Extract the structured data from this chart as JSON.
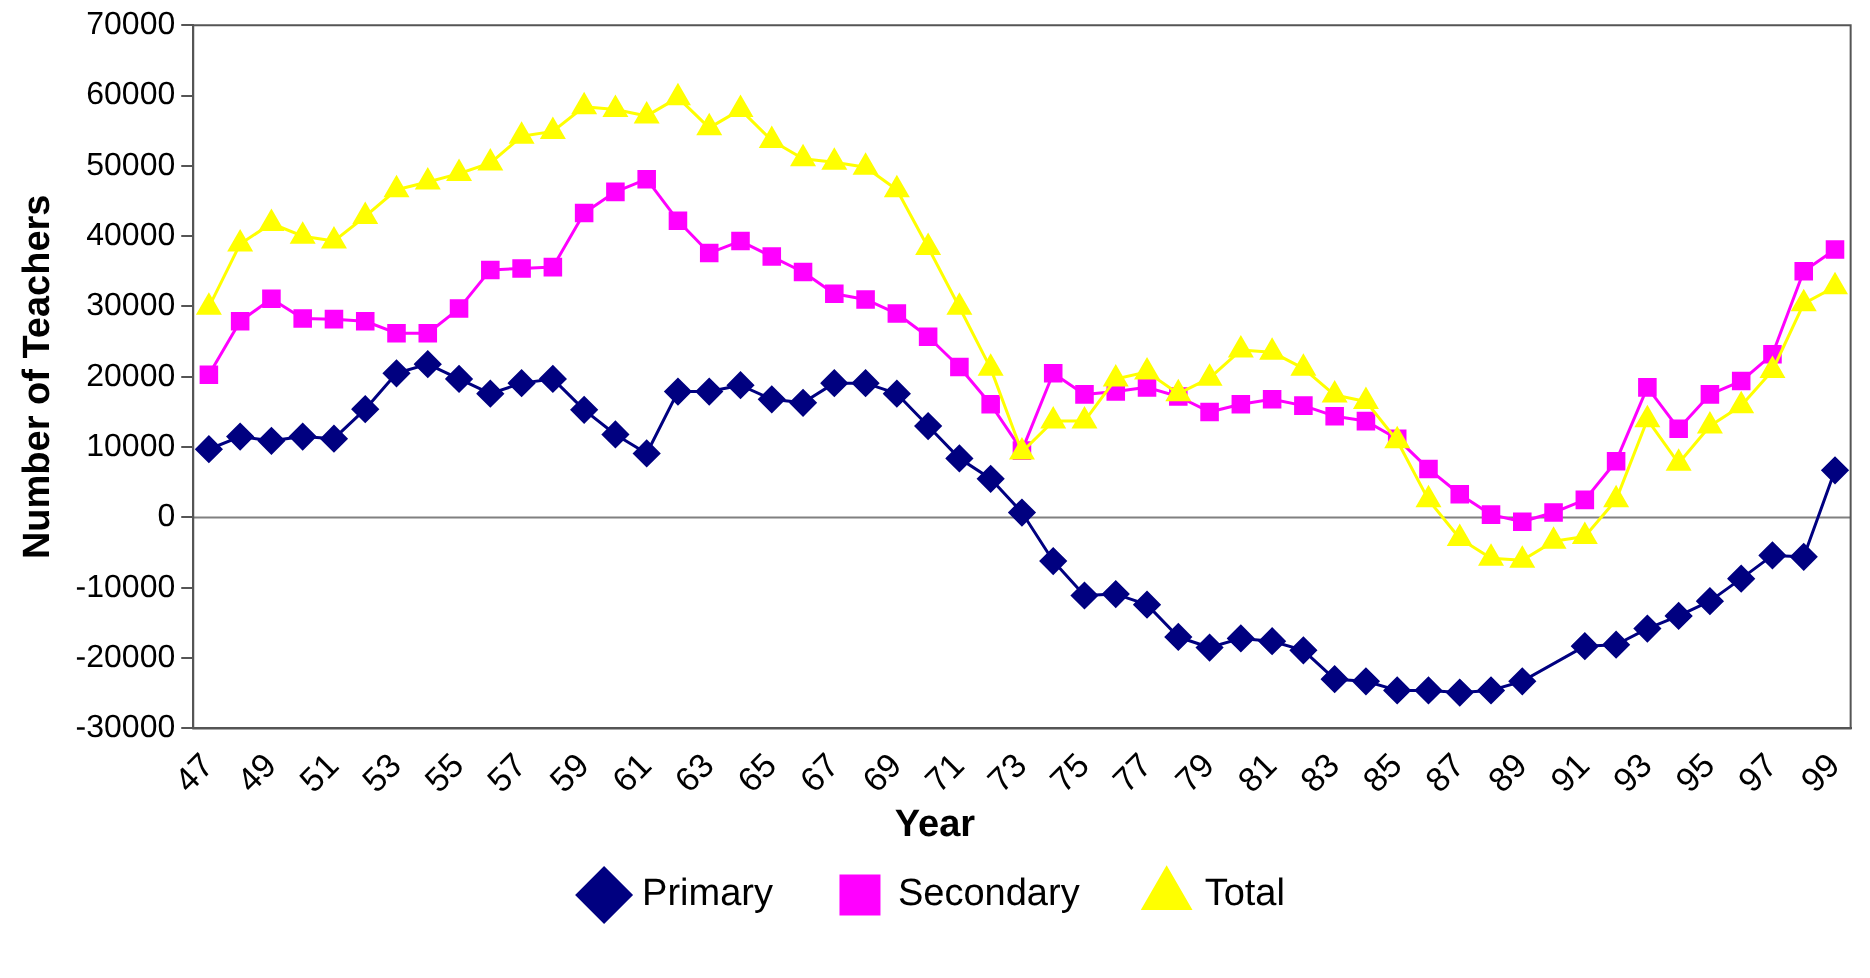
{
  "chart_data": {
    "type": "line",
    "xlabel": "Year",
    "ylabel": "Number of Teachers",
    "categories": [
      "47",
      null,
      "49",
      null,
      "51",
      null,
      "53",
      null,
      "55",
      null,
      "57",
      null,
      "59",
      null,
      "61",
      null,
      "63",
      null,
      "65",
      null,
      "67",
      null,
      "69",
      null,
      "71",
      null,
      "73",
      null,
      "75",
      null,
      "77",
      null,
      "79",
      null,
      "81",
      null,
      "83",
      null,
      "85",
      null,
      "87",
      null,
      "89",
      null,
      "91",
      null,
      "93",
      null,
      "95",
      null,
      "97",
      null,
      "99"
    ],
    "series": [
      {
        "name": "Primary",
        "color": "#000080",
        "marker": "diamond",
        "values": [
          9700,
          11500,
          10900,
          11500,
          11200,
          15400,
          20500,
          21800,
          19700,
          17600,
          19100,
          19700,
          15300,
          11800,
          9100,
          17900,
          17900,
          18800,
          16800,
          16300,
          19100,
          19100,
          17600,
          13000,
          8400,
          5500,
          700,
          -6200,
          -11100,
          -10900,
          -12400,
          -17000,
          -18500,
          -17200,
          -17600,
          -18900,
          -23000,
          -23300,
          -24600,
          -24600,
          -24900,
          -24600,
          -23300,
          null,
          -18300,
          -18100,
          -15800,
          -14000,
          -11900,
          -8700,
          -5400,
          -5600,
          6700
        ]
      },
      {
        "name": "Secondary",
        "color": "#ff00ff",
        "marker": "square",
        "values": [
          20300,
          27900,
          31100,
          28300,
          28200,
          27900,
          26200,
          26200,
          29700,
          35200,
          35400,
          35600,
          43300,
          46300,
          48100,
          42200,
          37600,
          39300,
          37100,
          34900,
          31800,
          31000,
          29000,
          25700,
          21400,
          16100,
          9500,
          20500,
          17500,
          17900,
          18500,
          17200,
          15000,
          16100,
          16800,
          15900,
          14400,
          13700,
          11200,
          6900,
          3300,
          400,
          -600,
          700,
          2500,
          8000,
          18500,
          12600,
          17500,
          19400,
          23200,
          35000,
          38100
        ]
      },
      {
        "name": "Total",
        "color": "#ffff00",
        "marker": "triangle",
        "values": [
          29900,
          38900,
          41800,
          40000,
          39300,
          42800,
          46600,
          47700,
          48900,
          50400,
          54200,
          54900,
          58400,
          58000,
          57100,
          59700,
          55400,
          58000,
          53600,
          51000,
          50500,
          49800,
          46600,
          38400,
          29900,
          21200,
          9300,
          13700,
          13700,
          19700,
          20700,
          17600,
          19800,
          23800,
          23500,
          21200,
          17400,
          16500,
          10900,
          2500,
          -3000,
          -5800,
          -6100,
          -3400,
          -2700,
          2500,
          13900,
          7700,
          13000,
          15900,
          20900,
          30400,
          32800
        ]
      }
    ],
    "ylim": [
      -30000,
      70000
    ],
    "yticks": [
      -30000,
      -20000,
      -10000,
      0,
      10000,
      20000,
      30000,
      40000,
      50000,
      60000,
      70000
    ],
    "ref_lines": [
      {
        "axis": "y",
        "value": 0,
        "color": "#808080"
      }
    ],
    "grid": false,
    "legend": "bottom",
    "line_style": "solid"
  }
}
